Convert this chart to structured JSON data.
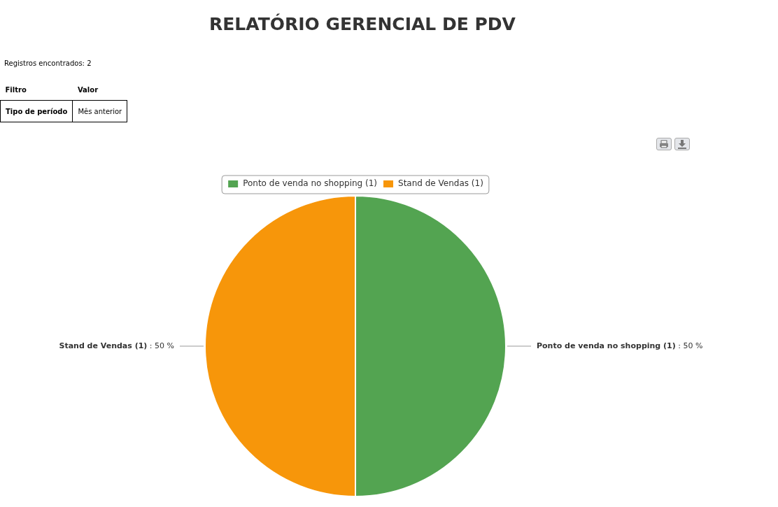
{
  "chart_data": {
    "type": "pie",
    "title": "RELATÓRIO GERENCIAL DE PDV",
    "categories": [
      "Ponto de venda no shopping (1)",
      "Stand de Vendas (1)"
    ],
    "values": [
      50,
      50
    ],
    "colors": [
      "#53a451",
      "#f7960a"
    ],
    "value_labels": [
      ": 50 %",
      ": 50 %"
    ],
    "legend": "top",
    "annotations": [
      "Registros encontrados: 2",
      "Filtro",
      "Valor",
      "Tipo de período",
      "Mês anterior"
    ]
  }
}
